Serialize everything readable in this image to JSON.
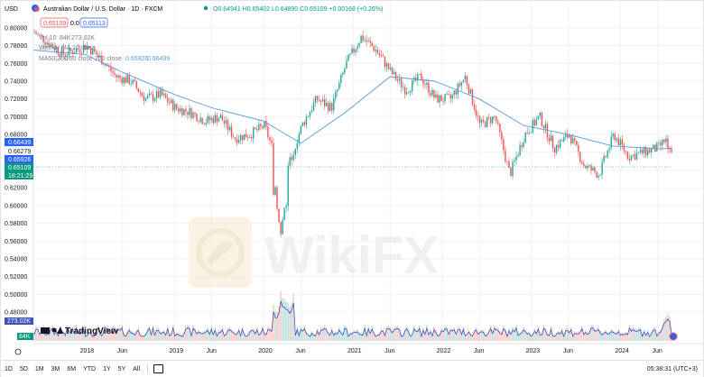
{
  "header": {
    "symbol_menu": "USD",
    "title": "Australian Dollar / U.S. Dollar · 1D · FXCM",
    "bid": "0.65109",
    "spread": "0.0",
    "ask": "0.65113",
    "ohlc": "O0.64941  H0.65402  L0.64890  C0.65109  +0.00168 (+0.26%)"
  },
  "studies": {
    "volume_label": "Vol 10",
    "volume_value_1": "84K",
    "volume_value_2": "273.02K",
    "weekly_ma_label": "Weekly MA 10 close",
    "ma_label": "MA50|200 50 close 200 close",
    "ma50_value": "0.65926",
    "ma200_value": "0.66439"
  },
  "price_axis": {
    "ticks": [
      "0.80000",
      "0.78000",
      "0.76000",
      "0.74000",
      "0.72000",
      "0.70000",
      "0.68000",
      "0.66000",
      "0.64000",
      "0.62000",
      "0.60000",
      "0.58000",
      "0.56000",
      "0.54000",
      "0.52000",
      "0.50000",
      "0.48000"
    ],
    "tags": {
      "ma200": "0.66439",
      "level": "0.66279",
      "ma50": "0.65926",
      "price": "0.65109",
      "countdown": "18:21:29",
      "vol1": "273.02K",
      "vol2": "84K"
    }
  },
  "time_axis": {
    "labels": [
      "2018",
      "Jun",
      "2019",
      "Jun",
      "2020",
      "Jun",
      "2021",
      "Jun",
      "2022",
      "Jun",
      "2023",
      "Jun",
      "2024",
      "Jun"
    ]
  },
  "watermark": {
    "text": "WikiFX"
  },
  "brand": {
    "text": "TradingView"
  },
  "bottombar": {
    "timeframes": [
      "1D",
      "5D",
      "1M",
      "3M",
      "6M",
      "YTD",
      "1Y",
      "5Y",
      "All"
    ],
    "clock": "05:38:31 (UTC+3)"
  },
  "colors": {
    "up": "#26a69a",
    "down": "#ef5350",
    "ma": "#2962ff",
    "ma_light": "#5b9bd5",
    "price_tag": "#089981",
    "volume_line": "#3f51b5"
  },
  "chart_data": {
    "type": "candlestick",
    "y_range": [
      0.47,
      0.81
    ],
    "x_range": [
      "2017-06",
      "2024-08"
    ],
    "close_series_approx": [
      {
        "x": "2017-06",
        "y": 0.795
      },
      {
        "x": "2017-10",
        "y": 0.77
      },
      {
        "x": "2018-01",
        "y": 0.78
      },
      {
        "x": "2018-03",
        "y": 0.765
      },
      {
        "x": "2018-05",
        "y": 0.745
      },
      {
        "x": "2018-07",
        "y": 0.74
      },
      {
        "x": "2018-09",
        "y": 0.72
      },
      {
        "x": "2018-11",
        "y": 0.725
      },
      {
        "x": "2019-01",
        "y": 0.71
      },
      {
        "x": "2019-03",
        "y": 0.705
      },
      {
        "x": "2019-05",
        "y": 0.695
      },
      {
        "x": "2019-07",
        "y": 0.7
      },
      {
        "x": "2019-09",
        "y": 0.676
      },
      {
        "x": "2019-11",
        "y": 0.68
      },
      {
        "x": "2020-01",
        "y": 0.69
      },
      {
        "x": "2020-02",
        "y": 0.665
      },
      {
        "x": "2020-03",
        "y": 0.58
      },
      {
        "x": "2020-04",
        "y": 0.64
      },
      {
        "x": "2020-06",
        "y": 0.69
      },
      {
        "x": "2020-08",
        "y": 0.72
      },
      {
        "x": "2020-10",
        "y": 0.71
      },
      {
        "x": "2020-12",
        "y": 0.76
      },
      {
        "x": "2021-02",
        "y": 0.79
      },
      {
        "x": "2021-04",
        "y": 0.775
      },
      {
        "x": "2021-06",
        "y": 0.75
      },
      {
        "x": "2021-08",
        "y": 0.73
      },
      {
        "x": "2021-10",
        "y": 0.745
      },
      {
        "x": "2021-12",
        "y": 0.72
      },
      {
        "x": "2022-02",
        "y": 0.72
      },
      {
        "x": "2022-04",
        "y": 0.745
      },
      {
        "x": "2022-06",
        "y": 0.69
      },
      {
        "x": "2022-08",
        "y": 0.7
      },
      {
        "x": "2022-10",
        "y": 0.635
      },
      {
        "x": "2022-12",
        "y": 0.68
      },
      {
        "x": "2023-02",
        "y": 0.7
      },
      {
        "x": "2023-04",
        "y": 0.665
      },
      {
        "x": "2023-06",
        "y": 0.68
      },
      {
        "x": "2023-08",
        "y": 0.645
      },
      {
        "x": "2023-10",
        "y": 0.635
      },
      {
        "x": "2023-12",
        "y": 0.68
      },
      {
        "x": "2024-02",
        "y": 0.655
      },
      {
        "x": "2024-04",
        "y": 0.66
      },
      {
        "x": "2024-06",
        "y": 0.665
      },
      {
        "x": "2024-07",
        "y": 0.675
      },
      {
        "x": "2024-08",
        "y": 0.651
      }
    ],
    "ma_series_approx": [
      {
        "x": "2017-06",
        "y": 0.775
      },
      {
        "x": "2018-01",
        "y": 0.77
      },
      {
        "x": "2018-06",
        "y": 0.75
      },
      {
        "x": "2019-01",
        "y": 0.725
      },
      {
        "x": "2019-06",
        "y": 0.71
      },
      {
        "x": "2020-01",
        "y": 0.695
      },
      {
        "x": "2020-06",
        "y": 0.67
      },
      {
        "x": "2020-12",
        "y": 0.705
      },
      {
        "x": "2021-06",
        "y": 0.745
      },
      {
        "x": "2021-12",
        "y": 0.74
      },
      {
        "x": "2022-06",
        "y": 0.72
      },
      {
        "x": "2022-12",
        "y": 0.69
      },
      {
        "x": "2023-06",
        "y": 0.68
      },
      {
        "x": "2023-12",
        "y": 0.667
      },
      {
        "x": "2024-06",
        "y": 0.664
      },
      {
        "x": "2024-08",
        "y": 0.6644
      }
    ]
  }
}
